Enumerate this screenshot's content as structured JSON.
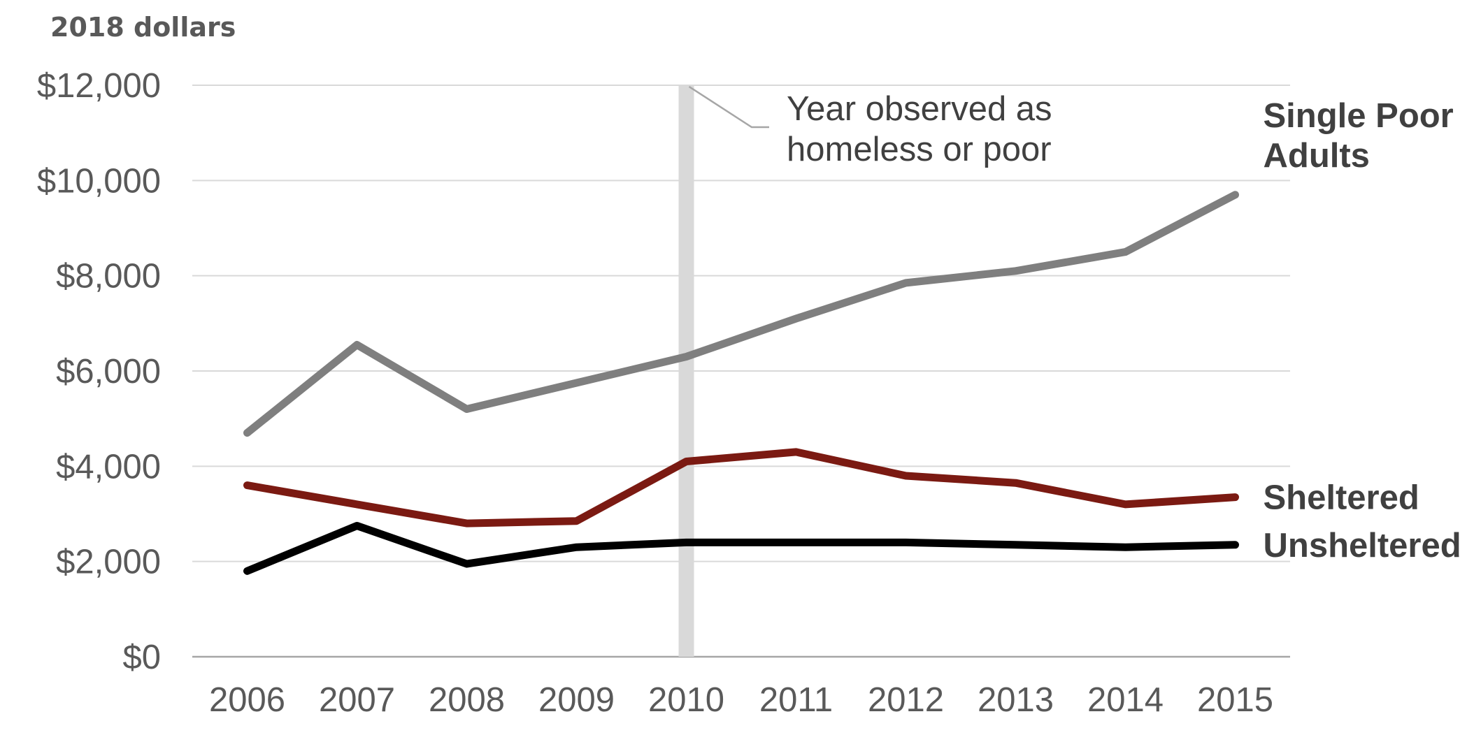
{
  "chart_data": {
    "type": "line",
    "title": "",
    "unit_label": "2018 dollars",
    "xlabel": "",
    "ylabel": "",
    "x": [
      "2006",
      "2007",
      "2008",
      "2009",
      "2010",
      "2011",
      "2012",
      "2013",
      "2014",
      "2015"
    ],
    "ylim": [
      0,
      12000
    ],
    "yticks": [
      0,
      2000,
      4000,
      6000,
      8000,
      10000,
      12000
    ],
    "ytick_labels": [
      "$0",
      "$2,000",
      "$4,000",
      "$6,000",
      "$8,000",
      "$10,000",
      "$12,000"
    ],
    "grid": true,
    "series": [
      {
        "name": "Single Poor Adults",
        "name_lines": [
          "Single Poor",
          "Adults"
        ],
        "color": "#7f7f7f",
        "values": [
          4700,
          6550,
          5200,
          5750,
          6300,
          7100,
          7850,
          8100,
          8500,
          9700
        ]
      },
      {
        "name": "Sheltered",
        "name_lines": [
          "Sheltered"
        ],
        "color": "#7b1a12",
        "values": [
          3600,
          3200,
          2800,
          2850,
          4100,
          4300,
          3800,
          3650,
          3200,
          3350
        ]
      },
      {
        "name": "Unsheltered",
        "name_lines": [
          "Unsheltered"
        ],
        "color": "#000000",
        "values": [
          1800,
          2750,
          1950,
          2300,
          2400,
          2400,
          2400,
          2350,
          2300,
          2350
        ]
      }
    ],
    "annotation": {
      "x": "2010",
      "text_lines": [
        "Year observed as",
        "homeless or poor"
      ],
      "band_color": "#d9d9d9"
    }
  }
}
